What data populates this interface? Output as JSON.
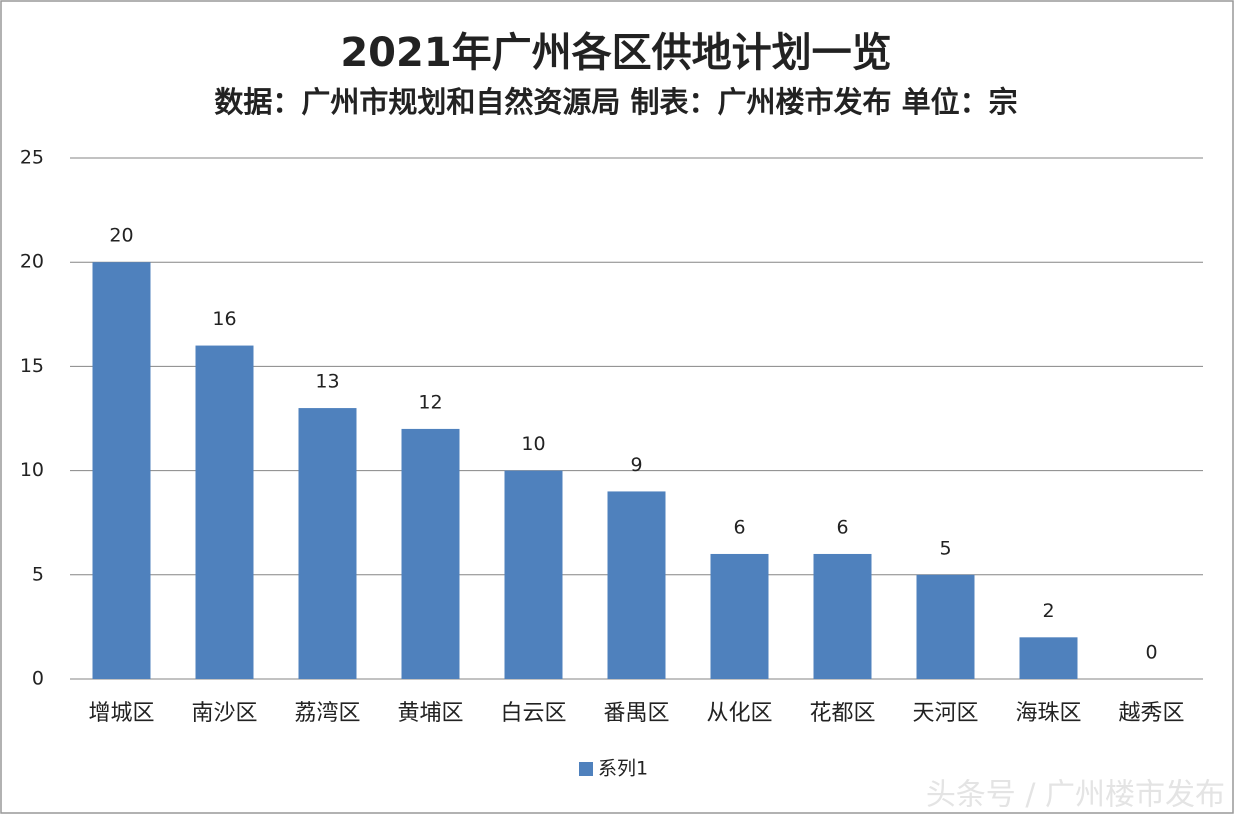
{
  "chart_data": {
    "type": "bar",
    "title": "2021年广州各区供地计划一览",
    "subtitle": "数据：广州市规划和自然资源局  制表：广州楼市发布 单位：宗",
    "categories": [
      "增城区",
      "南沙区",
      "荔湾区",
      "黄埔区",
      "白云区",
      "番禺区",
      "从化区",
      "花都区",
      "天河区",
      "海珠区",
      "越秀区"
    ],
    "series": [
      {
        "name": "系列1",
        "color": "#4f81bd",
        "values": [
          20,
          16,
          13,
          12,
          10,
          9,
          6,
          6,
          5,
          2,
          0
        ]
      }
    ],
    "ylim": [
      0,
      25
    ],
    "yticks": [
      0,
      5,
      10,
      15,
      20,
      25
    ],
    "grid": true,
    "legend": "bottom",
    "watermark": "头条号 / 广州楼市发布"
  }
}
